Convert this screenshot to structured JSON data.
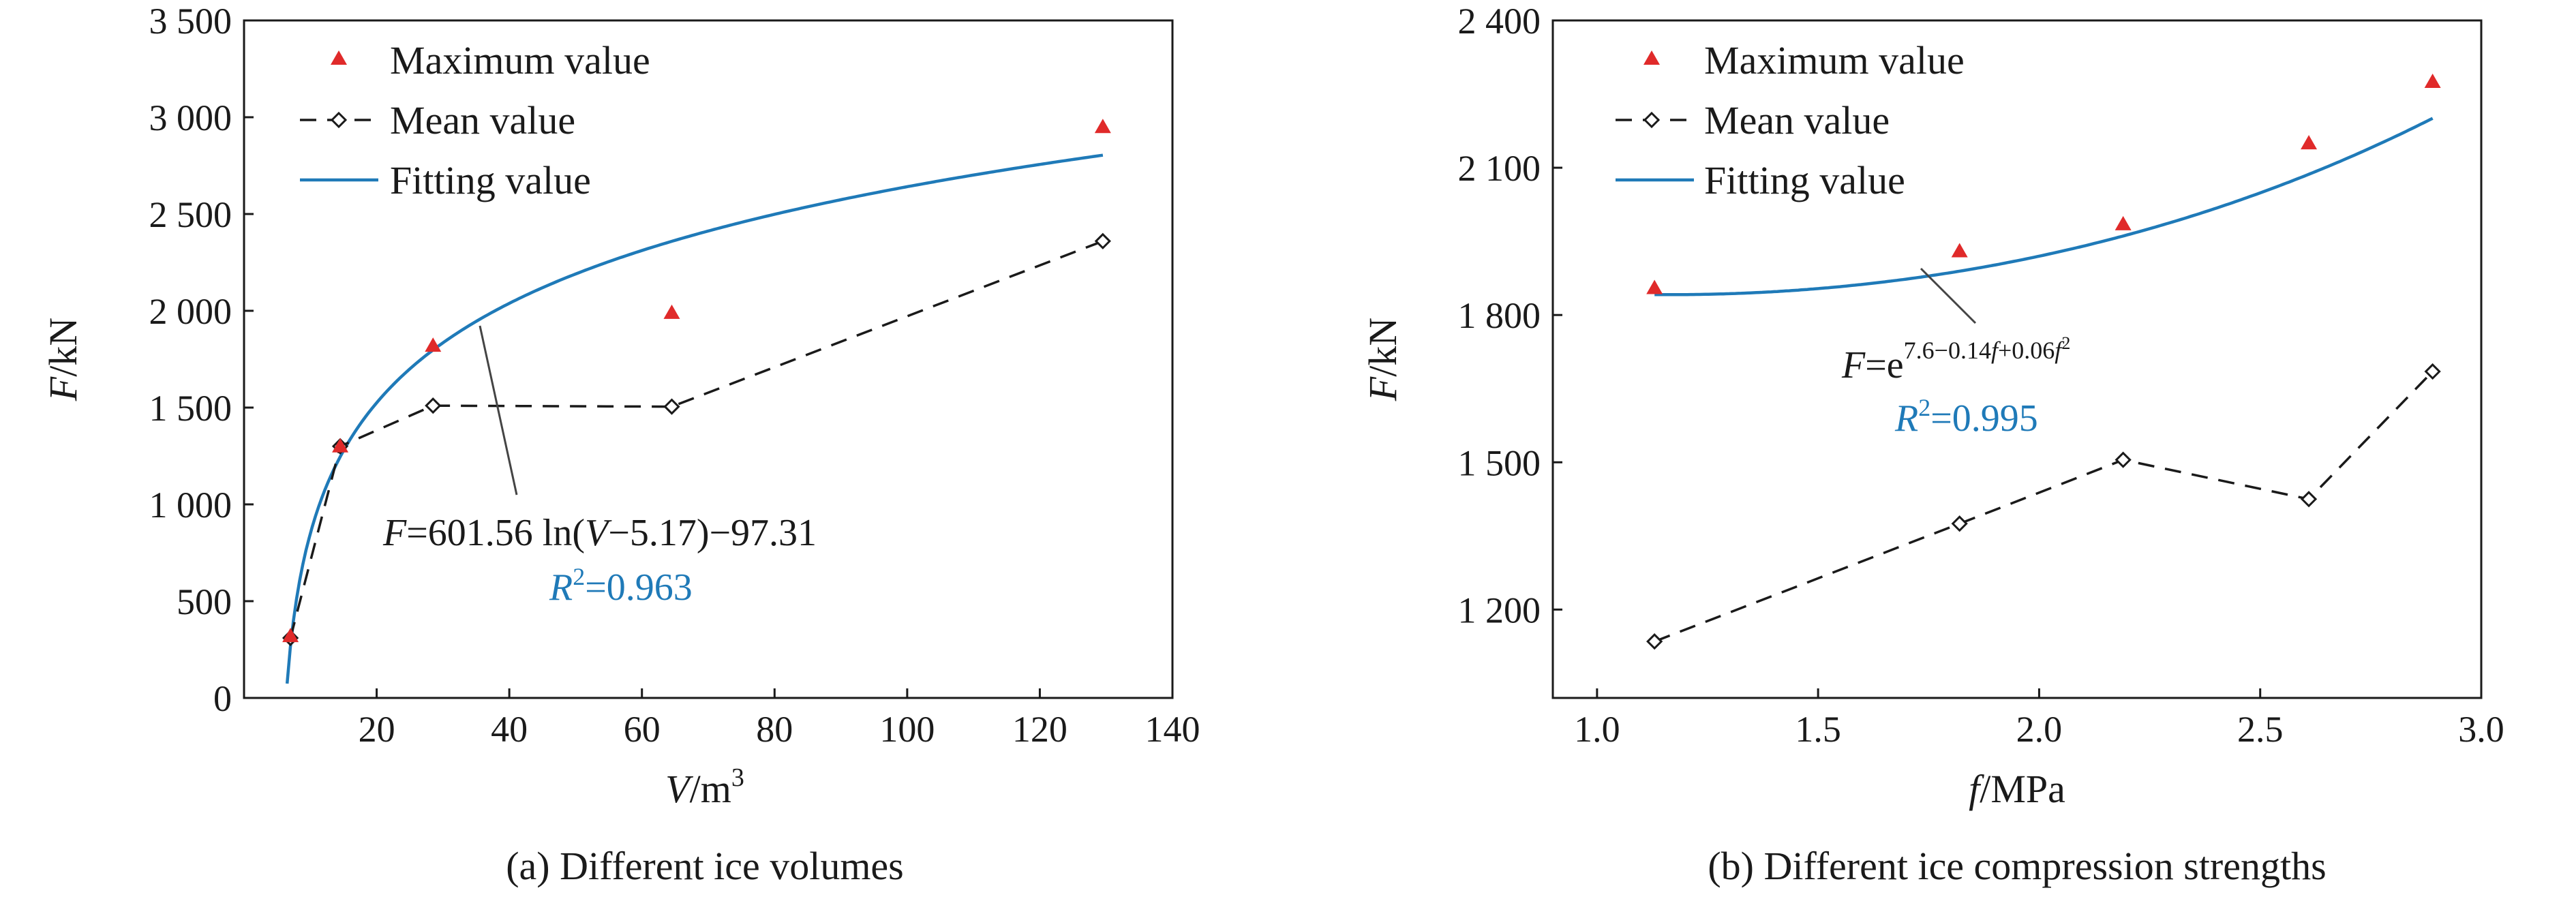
{
  "colors": {
    "max": "#e02a2a",
    "fit": "#1f7ab8",
    "mean": "#1a1a1a",
    "axis": "#1a1a1a"
  },
  "chart_data": [
    {
      "type": "scatter",
      "caption": "(a) Different ice volumes",
      "xlabel": {
        "var": "V",
        "unit": "/m",
        "sup": "3"
      },
      "ylabel": {
        "var": "F",
        "unit": "/kN"
      },
      "xlim": [
        0,
        140
      ],
      "ylim": [
        0,
        3500
      ],
      "x_ticks": [
        20,
        40,
        60,
        80,
        100,
        120,
        140
      ],
      "x_tick_labels": [
        "20",
        "40",
        "60",
        "80",
        "100",
        "120",
        "140"
      ],
      "y_ticks": [
        0,
        500,
        1000,
        1500,
        2000,
        2500,
        3000,
        3500
      ],
      "y_tick_labels": [
        "0",
        "500",
        "1 000",
        "1 500",
        "2 000",
        "2 500",
        "3 000",
        "3 500"
      ],
      "legend": [
        "Maximum value",
        "Mean value",
        "Fitting value"
      ],
      "series": [
        {
          "name": "Maximum value",
          "kind": "marker",
          "x": [
            7,
            14.5,
            28.5,
            64.5,
            129.5
          ],
          "y": [
            320,
            1300,
            1820,
            1990,
            2950
          ]
        },
        {
          "name": "Mean value",
          "kind": "dashed",
          "x": [
            7,
            14.5,
            28.5,
            64.5,
            129.5
          ],
          "y": [
            310,
            1300,
            1510,
            1505,
            2360
          ]
        },
        {
          "name": "Fitting value",
          "kind": "curve",
          "fit": "log",
          "a": 601.56,
          "b": 5.17,
          "c": -97.31,
          "xrange": [
            6.5,
            129.5
          ]
        }
      ],
      "equation": {
        "lhs": "F",
        "rhs_a": "=601.56 ln(",
        "var": "V",
        "rhs_b": "−5.17)−97.31"
      },
      "r2": {
        "var": "R",
        "sup": "2",
        "value": "=0.963"
      }
    },
    {
      "type": "scatter",
      "caption": "(b) Different ice compression strengths",
      "xlabel": {
        "var": "f",
        "unit": "/MPa"
      },
      "ylabel": {
        "var": "F",
        "unit": "/kN"
      },
      "xlim": [
        0.9,
        3.0
      ],
      "ylim": [
        1020,
        2400
      ],
      "x_ticks": [
        1.0,
        1.5,
        2.0,
        2.5,
        3.0
      ],
      "x_tick_labels": [
        "1.0",
        "1.5",
        "2.0",
        "2.5",
        "3.0"
      ],
      "y_ticks": [
        1200,
        1500,
        1800,
        2100,
        2400
      ],
      "y_tick_labels": [
        "1 200",
        "1 500",
        "1 800",
        "2 100",
        "2 400"
      ],
      "legend": [
        "Maximum value",
        "Mean value",
        "Fitting value"
      ],
      "series": [
        {
          "name": "Maximum value",
          "kind": "marker",
          "x": [
            1.13,
            1.82,
            2.19,
            2.61,
            2.89
          ],
          "y": [
            1855,
            1930,
            1985,
            2150,
            2275
          ]
        },
        {
          "name": "Mean value",
          "kind": "dashed",
          "x": [
            1.13,
            1.82,
            2.19,
            2.61,
            2.89
          ],
          "y": [
            1135,
            1375,
            1505,
            1425,
            1685
          ]
        },
        {
          "name": "Fitting value",
          "kind": "curve",
          "fit": "exp",
          "a": 7.6,
          "b": -0.14,
          "c": 0.06,
          "xrange": [
            1.13,
            2.89
          ]
        }
      ],
      "equation": {
        "lhs": "F",
        "rhs_a": "=e",
        "sup": "7.6−0.14",
        "sup_var": "f",
        "sup_b": "+0.06",
        "sup_var2": "f",
        "sup_b2": "2"
      },
      "r2": {
        "var": "R",
        "sup": "2",
        "value": "=0.995"
      }
    }
  ]
}
